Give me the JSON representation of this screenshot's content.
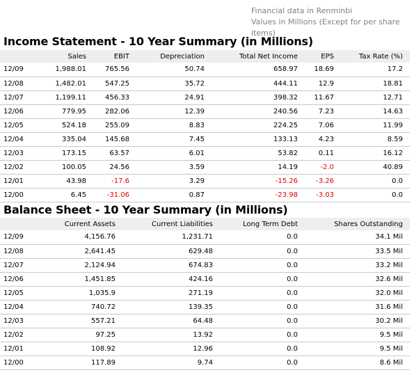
{
  "notes": {
    "currency": "Financial data in Renminbi",
    "units": "Values in Millions (Except for per share items)"
  },
  "income": {
    "title": "Income Statement - 10 Year Summary (in Millions)",
    "columns": [
      "",
      "Sales",
      "EBIT",
      "Depreciation",
      "Total Net Income",
      "EPS",
      "Tax Rate (%)"
    ],
    "rows": [
      [
        "12/09",
        "1,988.01",
        "765.56",
        "50.74",
        "658.97",
        "18.69",
        "17.2"
      ],
      [
        "12/08",
        "1,482.01",
        "547.25",
        "35.72",
        "444.11",
        "12.9",
        "18.81"
      ],
      [
        "12/07",
        "1,199.11",
        "456.33",
        "24.91",
        "398.32",
        "11.67",
        "12.71"
      ],
      [
        "12/06",
        "779.95",
        "282.06",
        "12.39",
        "240.56",
        "7.23",
        "14.63"
      ],
      [
        "12/05",
        "524.18",
        "255.09",
        "8.83",
        "224.25",
        "7.06",
        "11.99"
      ],
      [
        "12/04",
        "335.04",
        "145.68",
        "7.45",
        "133.13",
        "4.23",
        "8.59"
      ],
      [
        "12/03",
        "173.15",
        "63.57",
        "6.01",
        "53.82",
        "0.11",
        "16.12"
      ],
      [
        "12/02",
        "100.05",
        "24.56",
        "3.59",
        "14.19",
        "-2.0",
        "40.89"
      ],
      [
        "12/01",
        "43.98",
        "-17.6",
        "3.29",
        "-15.26",
        "-3.26",
        "0.0"
      ],
      [
        "12/00",
        "6.45",
        "-31.06",
        "0.87",
        "-23.98",
        "-3.03",
        "0.0"
      ]
    ]
  },
  "balance": {
    "title": "Balance Sheet - 10 Year Summary (in Millions)",
    "columns": [
      "",
      "Current Assets",
      "Current Liabilities",
      "Long Term Debt",
      "Shares Outstanding"
    ],
    "rows": [
      [
        "12/09",
        "4,156.76",
        "1,231.71",
        "0.0",
        "34.1 Mil"
      ],
      [
        "12/08",
        "2,641.45",
        "629.48",
        "0.0",
        "33.5 Mil"
      ],
      [
        "12/07",
        "2,124.94",
        "674.83",
        "0.0",
        "33.2 Mil"
      ],
      [
        "12/06",
        "1,451.85",
        "424.16",
        "0.0",
        "32.6 Mil"
      ],
      [
        "12/05",
        "1,035.9",
        "271.19",
        "0.0",
        "32.0 Mil"
      ],
      [
        "12/04",
        "740.72",
        "139.35",
        "0.0",
        "31.6 Mil"
      ],
      [
        "12/03",
        "557.21",
        "64.48",
        "0.0",
        "30.2 Mil"
      ],
      [
        "12/02",
        "97.25",
        "13.92",
        "0.0",
        "9.5 Mil"
      ],
      [
        "12/01",
        "108.92",
        "12.96",
        "0.0",
        "9.5 Mil"
      ],
      [
        "12/00",
        "117.89",
        "9.74",
        "0.0",
        "8.6 Mil"
      ]
    ]
  },
  "colors": {
    "header_bg": "#eeeeee",
    "negative": "#e00000",
    "note": "#808080",
    "row_border": "#c8c8c8"
  }
}
